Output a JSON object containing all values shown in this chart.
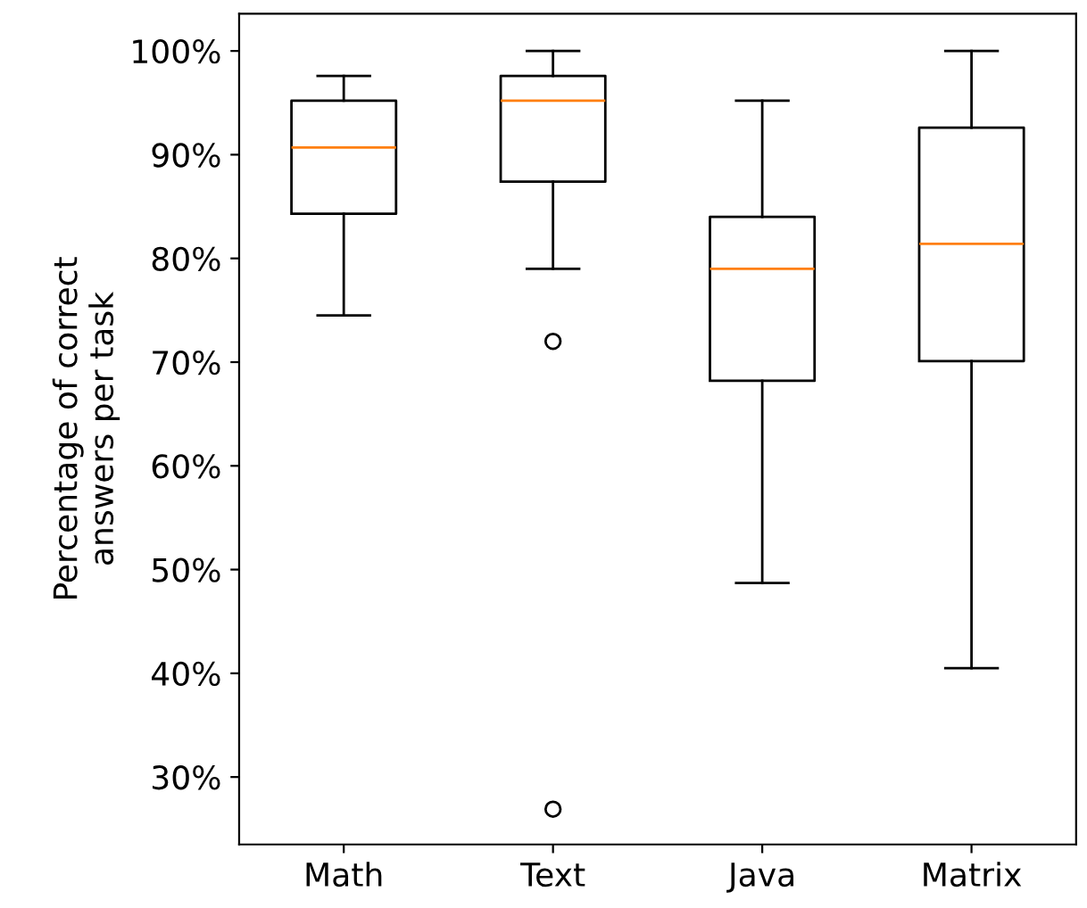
{
  "chart_data": {
    "type": "box",
    "ylabel": "Percentage of correct\nanswers per task",
    "categories": [
      "Math",
      "Text",
      "Java",
      "Matrix"
    ],
    "boxes": [
      {
        "low": 74.5,
        "q1": 84.3,
        "median": 90.7,
        "q3": 95.2,
        "high": 97.6
      },
      {
        "low": 79.0,
        "q1": 87.4,
        "median": 95.2,
        "q3": 97.6,
        "high": 100,
        "outliers": [
          72.0,
          26.9
        ]
      },
      {
        "low": 48.7,
        "q1": 68.2,
        "median": 79.0,
        "q3": 84.0,
        "high": 95.2
      },
      {
        "low": 40.5,
        "q1": 70.1,
        "median": 81.4,
        "q3": 92.6,
        "high": 100
      }
    ],
    "color": "#000000",
    "ylim": [
      23.5,
      103.6
    ],
    "yticks": [
      {
        "value": 30,
        "label": "30%"
      },
      {
        "value": 40,
        "label": "40%"
      },
      {
        "value": 50,
        "label": "50%"
      },
      {
        "value": 60,
        "label": "60%"
      },
      {
        "value": 70,
        "label": "70%"
      },
      {
        "value": 80,
        "label": "80%"
      },
      {
        "value": 90,
        "label": "90%"
      },
      {
        "value": 100,
        "label": "100%"
      }
    ],
    "grid": false,
    "legend": false
  }
}
